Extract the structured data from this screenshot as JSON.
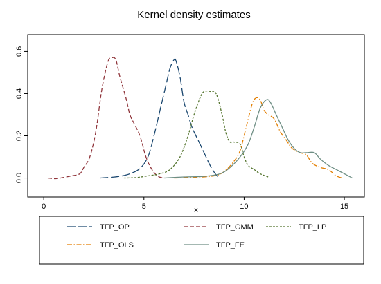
{
  "chart_data": {
    "type": "line",
    "title": "Kernel density estimates",
    "xlabel": "x",
    "ylabel": "",
    "xlim": [
      -0.8,
      16.0
    ],
    "ylim": [
      -0.09,
      0.68
    ],
    "xticks": [
      0,
      5,
      10,
      15
    ],
    "yticks": [
      0.0,
      0.2,
      0.4,
      0.6
    ],
    "xtick_labels": [
      "0",
      "5",
      "10",
      "15"
    ],
    "ytick_labels": [
      "0.0",
      "0.2",
      "0.4",
      "0.6"
    ],
    "grid": false,
    "legend_position": "bottom",
    "series": [
      {
        "name": "TFP_OP",
        "color": "#1a476f",
        "dash": "long-dash",
        "x": [
          2.8,
          3.3,
          3.8,
          4.3,
          4.8,
          5.2,
          5.5,
          5.8,
          6.1,
          6.3,
          6.5,
          6.6,
          6.8,
          7.0,
          7.2,
          7.4,
          7.7,
          8.0,
          8.3,
          8.6,
          8.8
        ],
        "y": [
          0.0,
          0.003,
          0.008,
          0.02,
          0.045,
          0.1,
          0.2,
          0.32,
          0.44,
          0.52,
          0.56,
          0.555,
          0.48,
          0.36,
          0.3,
          0.24,
          0.18,
          0.12,
          0.06,
          0.015,
          0.0
        ]
      },
      {
        "name": "TFP_GMM",
        "color": "#90353b",
        "dash": "dash",
        "x": [
          0.2,
          0.6,
          1.0,
          1.4,
          1.8,
          2.0,
          2.3,
          2.6,
          2.9,
          3.2,
          3.4,
          3.6,
          3.8,
          4.1,
          4.3,
          4.5,
          4.8,
          5.1,
          5.4,
          5.7,
          6.0
        ],
        "y": [
          0.0,
          -0.003,
          0.003,
          0.01,
          0.02,
          0.05,
          0.1,
          0.22,
          0.42,
          0.55,
          0.57,
          0.56,
          0.48,
          0.38,
          0.3,
          0.26,
          0.2,
          0.1,
          0.04,
          0.008,
          0.0
        ]
      },
      {
        "name": "TFP_LP",
        "color": "#55752f",
        "dash": "short-dash",
        "x": [
          4.0,
          4.6,
          5.2,
          5.8,
          6.3,
          6.8,
          7.2,
          7.5,
          7.8,
          8.0,
          8.3,
          8.6,
          8.9,
          9.1,
          9.3,
          9.5,
          9.8,
          10.0,
          10.2,
          10.5,
          10.8,
          11.2
        ],
        "y": [
          0.0,
          0.002,
          0.01,
          0.02,
          0.04,
          0.1,
          0.2,
          0.3,
          0.38,
          0.41,
          0.41,
          0.4,
          0.3,
          0.21,
          0.17,
          0.17,
          0.16,
          0.1,
          0.06,
          0.04,
          0.02,
          0.005
        ]
      },
      {
        "name": "TFP_OLS",
        "color": "#e37e00",
        "dash": "dash-dot",
        "x": [
          6.5,
          7.5,
          8.5,
          9.0,
          9.5,
          9.8,
          10.1,
          10.4,
          10.6,
          10.8,
          11.0,
          11.2,
          11.5,
          11.8,
          12.1,
          12.4,
          12.8,
          13.1,
          13.4,
          13.8,
          14.2,
          14.6,
          14.9
        ],
        "y": [
          0.0,
          0.003,
          0.01,
          0.03,
          0.08,
          0.13,
          0.24,
          0.35,
          0.38,
          0.37,
          0.32,
          0.3,
          0.28,
          0.22,
          0.18,
          0.14,
          0.12,
          0.11,
          0.07,
          0.05,
          0.04,
          0.01,
          0.0
        ]
      },
      {
        "name": "TFP_FE",
        "color": "#6e8e84",
        "dash": "solid",
        "x": [
          6.0,
          7.0,
          8.0,
          8.8,
          9.3,
          9.8,
          10.2,
          10.5,
          10.8,
          11.1,
          11.3,
          11.6,
          11.9,
          12.2,
          12.5,
          12.8,
          13.1,
          13.5,
          13.8,
          14.2,
          14.6,
          15.0,
          15.4
        ],
        "y": [
          0.0,
          0.005,
          0.008,
          0.02,
          0.05,
          0.1,
          0.16,
          0.24,
          0.33,
          0.37,
          0.36,
          0.3,
          0.24,
          0.18,
          0.14,
          0.12,
          0.12,
          0.12,
          0.09,
          0.06,
          0.04,
          0.02,
          0.0
        ]
      }
    ]
  }
}
